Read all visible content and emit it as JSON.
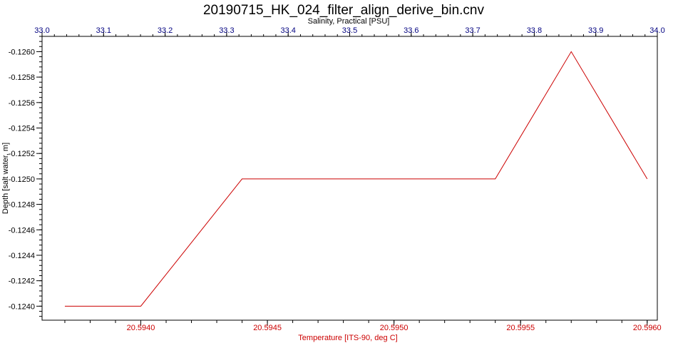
{
  "chart_data": {
    "type": "line",
    "title": "20190715_HK_024_filter_align_derive_bin.cnv",
    "x_bottom": {
      "label": "Temperature [ITS-90, deg C]",
      "range": [
        20.59361,
        20.59604
      ],
      "ticks": [
        20.594,
        20.5945,
        20.595,
        20.5955,
        20.596
      ],
      "tick_labels": [
        "20.5940",
        "20.5945",
        "20.5950",
        "20.5955",
        "20.5960"
      ],
      "color": "#cc0000"
    },
    "x_top": {
      "label": "Salinity, Practical [PSU]",
      "range": [
        33.0,
        34.0
      ],
      "ticks": [
        33.0,
        33.1,
        33.2,
        33.3,
        33.4,
        33.5,
        33.6,
        33.7,
        33.8,
        33.9,
        34.0
      ],
      "tick_labels": [
        "33.0",
        "33.1",
        "33.2",
        "33.3",
        "33.4",
        "33.5",
        "33.6",
        "33.7",
        "33.8",
        "33.9",
        "34.0"
      ],
      "color": "#000080"
    },
    "y": {
      "label": "Depth [salt water, m]",
      "range": [
        -0.12612,
        -0.12389
      ],
      "inverted": true,
      "ticks": [
        -0.126,
        -0.1258,
        -0.1256,
        -0.1254,
        -0.1252,
        -0.125,
        -0.1248,
        -0.1246,
        -0.1244,
        -0.1242,
        -0.124
      ],
      "tick_labels": [
        "-0.1260",
        "-0.1258",
        "-0.1256",
        "-0.1254",
        "-0.1252",
        "-0.1250",
        "-0.1248",
        "-0.1246",
        "-0.1244",
        "-0.1242",
        "-0.1240"
      ]
    },
    "grid": false,
    "series": [
      {
        "axis": "bottom",
        "color": "#cc0000",
        "x": [
          20.5937,
          20.594,
          20.5944,
          20.5954,
          20.5957,
          20.596
        ],
        "y": [
          -0.124,
          -0.124,
          -0.125,
          -0.125,
          -0.126,
          -0.125
        ]
      }
    ]
  }
}
